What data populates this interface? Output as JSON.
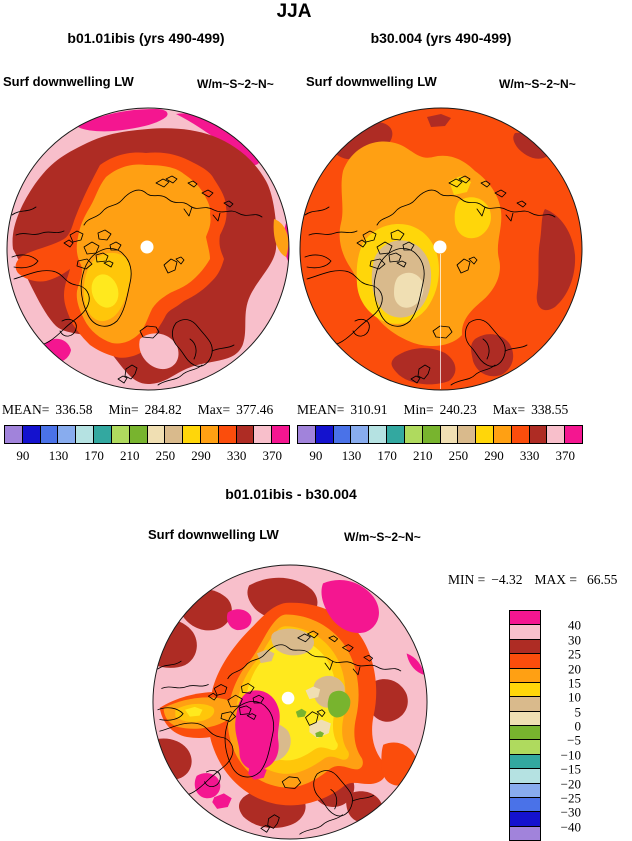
{
  "header": {
    "season": "JJA"
  },
  "palette": {
    "purple": "#A183DB",
    "dkblue": "#1412CE",
    "royal": "#4A72E8",
    "ltblue": "#88ACEE",
    "palecyan": "#B5E2E2",
    "teal": "#33A8A0",
    "ltgreen": "#AFDA5E",
    "green": "#78B42E",
    "beige": "#F0DFB3",
    "tan": "#D9BA8C",
    "yellow": "#FFD60A",
    "orange": "#FFA013",
    "redorange": "#FB4D0C",
    "darkred": "#AE2C24",
    "pink": "#F8BFCB",
    "magenta": "#F41690",
    "gold": "#FFC60A",
    "brightyellow": "#FFE91E",
    "white": "#FFFFFF",
    "outline": "#1A1A1A"
  },
  "panels": {
    "left": {
      "title": "b01.01ibis (yrs 490-499)",
      "field": "Surf downwelling LW",
      "units": "W/m~S~2~N~",
      "stats": {
        "mean_label": "MEAN=",
        "mean": "336.58",
        "min_label": "Min=",
        "min": "284.82",
        "max_label": "Max=",
        "max": "377.46"
      }
    },
    "right": {
      "title": "b30.004 (yrs 490-499)",
      "field": "Surf downwelling LW",
      "units": "W/m~S~2~N~",
      "stats": {
        "mean_label": "MEAN=",
        "mean": "310.91",
        "min_label": "Min=",
        "min": "240.23",
        "max_label": "Max=",
        "max": "338.55"
      }
    },
    "diff": {
      "title": "b01.01ibis - b30.004",
      "field": "Surf downwelling LW",
      "units": "W/m~S~2~N~",
      "stats": {
        "min_label": "MIN =",
        "min": "−4.32",
        "max_label": "MAX =",
        "max": "66.55"
      }
    }
  },
  "colorbars": {
    "absolute": {
      "orientation": "horizontal",
      "colors": [
        "#A183DB",
        "#1412CE",
        "#4A72E8",
        "#88ACEE",
        "#B5E2E2",
        "#33A8A0",
        "#AFDA5E",
        "#78B42E",
        "#F0DFB3",
        "#D9BA8C",
        "#FFD60A",
        "#FFA013",
        "#FB4D0C",
        "#AE2C24",
        "#F8BFCB",
        "#F41690"
      ],
      "ticks": [
        "90",
        "130",
        "170",
        "210",
        "250",
        "290",
        "330",
        "370"
      ]
    },
    "difference": {
      "orientation": "vertical",
      "colors": [
        "#F41690",
        "#F8BFCB",
        "#AE2C24",
        "#FB4D0C",
        "#FFA013",
        "#FFD60A",
        "#D9BA8C",
        "#F0DFB3",
        "#78B42E",
        "#AFDA5E",
        "#33A8A0",
        "#B5E2E2",
        "#88ACEE",
        "#4A72E8",
        "#1412CE",
        "#A183DB"
      ],
      "ticks": [
        "40",
        "30",
        "25",
        "20",
        "15",
        "10",
        "5",
        "0",
        "−5",
        "−10",
        "−15",
        "−20",
        "−25",
        "−30",
        "−40"
      ]
    }
  },
  "chart_data": [
    {
      "type": "heatmap",
      "projection": "north-polar-stereographic",
      "title": "b01.01ibis (yrs 490-499)",
      "field": "Surf downwelling LW",
      "units": "W/m^2",
      "season": "JJA",
      "stats": {
        "mean": 336.58,
        "min": 284.82,
        "max": 377.46
      },
      "contour_levels_shown": [
        90,
        130,
        170,
        210,
        250,
        290,
        330,
        370
      ],
      "contour_interval": 20,
      "legend_position": "bottom"
    },
    {
      "type": "heatmap",
      "projection": "north-polar-stereographic",
      "title": "b30.004 (yrs 490-499)",
      "field": "Surf downwelling LW",
      "units": "W/m^2",
      "season": "JJA",
      "stats": {
        "mean": 310.91,
        "min": 240.23,
        "max": 338.55
      },
      "contour_levels_shown": [
        90,
        130,
        170,
        210,
        250,
        290,
        330,
        370
      ],
      "contour_interval": 20,
      "legend_position": "bottom"
    },
    {
      "type": "heatmap",
      "projection": "north-polar-stereographic",
      "title": "b01.01ibis - b30.004",
      "field": "Surf downwelling LW",
      "units": "W/m^2",
      "season": "JJA",
      "stats": {
        "min": -4.32,
        "max": 66.55
      },
      "contour_levels_shown": [
        40,
        30,
        25,
        20,
        15,
        10,
        5,
        0,
        -5,
        -10,
        -15,
        -20,
        -25,
        -30,
        -40
      ],
      "legend_position": "right"
    }
  ]
}
